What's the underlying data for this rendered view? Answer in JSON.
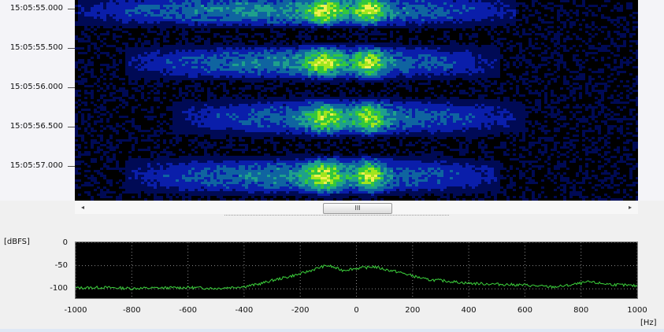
{
  "waterfall": {
    "timestamps": [
      "15:05:55.000",
      "15:05:55.500",
      "15:05:56.000",
      "15:05:56.500",
      "15:05:57.000"
    ],
    "palette": [
      "#000000",
      "#000a55",
      "#0a1eaa",
      "#0f64a0",
      "#1ea08c",
      "#32c83c",
      "#a0e61e",
      "#f0f050"
    ]
  },
  "scrollbar": {
    "left_arrow": "◂",
    "right_arrow": "▸",
    "thumb_grip": "III"
  },
  "spectrum": {
    "y_unit": "[dBFS]",
    "x_unit": "[Hz]",
    "y_ticks": [
      "0",
      "-50",
      "-100"
    ],
    "x_ticks": [
      "-1000",
      "-800",
      "-600",
      "-400",
      "-200",
      "0",
      "200",
      "400",
      "600",
      "800",
      "1000"
    ],
    "trace_color": "#3cd23c",
    "grid_color": "#8a8a8a",
    "plot_background": "#000000"
  },
  "chart_data": {
    "type": "line",
    "xlabel": "[Hz]",
    "ylabel": "[dBFS]",
    "xlim": [
      -1000,
      1000
    ],
    "ylim": [
      -120,
      0
    ],
    "grid": true,
    "series": [
      {
        "x": [
          -1000,
          -900,
          -800,
          -700,
          -600,
          -500,
          -400,
          -350,
          -300,
          -250,
          -200,
          -150,
          -120,
          -100,
          -80,
          -50,
          0,
          40,
          60,
          100,
          150,
          200,
          250,
          300,
          400,
          500,
          600,
          650,
          700,
          750,
          800,
          830,
          850,
          900,
          1000
        ],
        "values": [
          -98,
          -97,
          -99,
          -98,
          -97,
          -99,
          -95,
          -90,
          -82,
          -75,
          -68,
          -58,
          -52,
          -50,
          -54,
          -60,
          -56,
          -54,
          -52,
          -58,
          -64,
          -72,
          -80,
          -82,
          -88,
          -90,
          -92,
          -94,
          -96,
          -93,
          -88,
          -85,
          -87,
          -90,
          -94
        ]
      }
    ]
  }
}
